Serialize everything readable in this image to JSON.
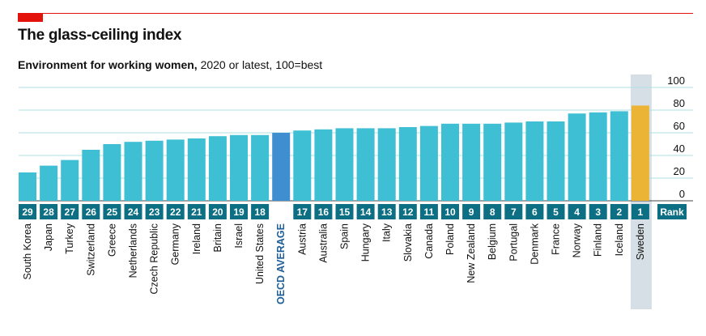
{
  "header": {
    "title": "The glass-ceiling index",
    "subtitle_bold": "Environment for working women,",
    "subtitle_rest": " 2020 or latest, 100=best"
  },
  "colors": {
    "bar": "#3fbfd3",
    "oecd_bar": "#3f8fd0",
    "top_bar": "#ebb434",
    "rank_box": "#0c6f84",
    "highlight_band": "#d5dfe5",
    "gridline": "#aee0e6",
    "brand_red": "#e3120b"
  },
  "chart_data": {
    "type": "bar",
    "title": "The glass-ceiling index",
    "subtitle": "Environment for working women, 2020 or latest, 100=best",
    "ylim": [
      0,
      100
    ],
    "yticks": [
      0,
      20,
      40,
      60,
      80,
      100
    ],
    "rank_header": "Rank",
    "grid": true,
    "categories": [
      "South Korea",
      "Japan",
      "Turkey",
      "Switzerland",
      "Greece",
      "Netherlands",
      "Czech Republic",
      "Germany",
      "Ireland",
      "Britain",
      "Israel",
      "United States",
      "OECD AVERAGE",
      "Austria",
      "Australia",
      "Spain",
      "Hungary",
      "Italy",
      "Slovakia",
      "Canada",
      "Poland",
      "New Zealand",
      "Belgium",
      "Portugal",
      "Denmark",
      "France",
      "Norway",
      "Finland",
      "Iceland",
      "Sweden"
    ],
    "values": [
      25,
      31,
      36,
      45,
      50,
      52,
      53,
      54,
      55,
      57,
      58,
      58,
      60,
      62,
      63,
      64,
      64,
      64,
      65,
      66,
      68,
      68,
      68,
      69,
      70,
      70,
      77,
      78,
      79,
      84
    ],
    "ranks": [
      "29",
      "28",
      "27",
      "26",
      "25",
      "24",
      "23",
      "22",
      "21",
      "20",
      "19",
      "18",
      "",
      "17",
      "16",
      "15",
      "14",
      "13",
      "12",
      "11",
      "10",
      "9",
      "8",
      "7",
      "6",
      "5",
      "4",
      "3",
      "2",
      "1"
    ],
    "highlight": {
      "oecd_index": 12,
      "top_index": 29
    }
  }
}
